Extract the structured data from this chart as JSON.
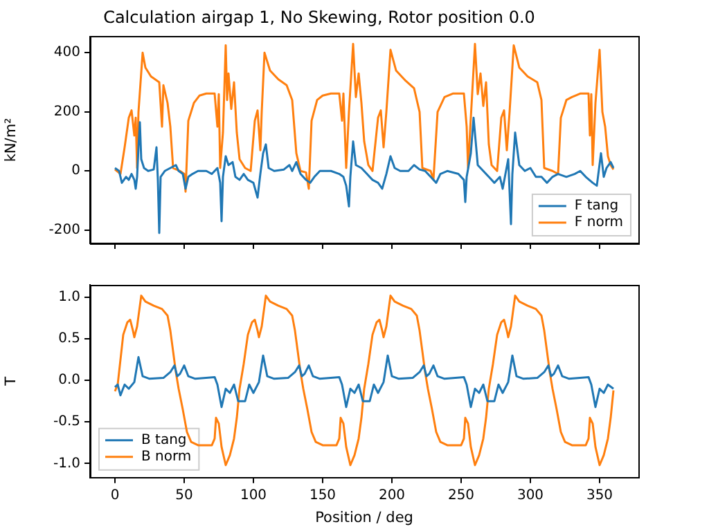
{
  "chart_data": [
    {
      "type": "line",
      "title": "Calculation airgap 1, No Skewing, Rotor position 0.0",
      "ylabel": "kN/m²",
      "xlim": [
        -18,
        378
      ],
      "xticks": [
        0,
        50,
        100,
        150,
        200,
        250,
        300,
        350
      ],
      "ylim": [
        -245,
        455
      ],
      "yticks": [
        -200,
        0,
        200,
        400
      ],
      "tick_labels": "y",
      "legend": "bottom right",
      "marker": "none",
      "line_style": "solid",
      "series": [
        {
          "name": "F tang",
          "color": "#1f77b4",
          "x": [
            0,
            3,
            5,
            8,
            10,
            12,
            14,
            15,
            16,
            17,
            18,
            19,
            21,
            24,
            28,
            30,
            31,
            32,
            33,
            36,
            40,
            44,
            46,
            49,
            51,
            53,
            56,
            60,
            66,
            70,
            74,
            76,
            77,
            78,
            80,
            82,
            85,
            87,
            90,
            93,
            96,
            100,
            103,
            105,
            107,
            109,
            111,
            115,
            122,
            126,
            128,
            131,
            134,
            138,
            141,
            144,
            148,
            156,
            162,
            165,
            167,
            169,
            170,
            172,
            174,
            178,
            182,
            186,
            190,
            193,
            196,
            199,
            202,
            206,
            212,
            216,
            220,
            224,
            228,
            232,
            235,
            240,
            248,
            252,
            253,
            254,
            257,
            259,
            262,
            266,
            270,
            274,
            278,
            280,
            282,
            284,
            286,
            287,
            289,
            292,
            296,
            300,
            304,
            308,
            312,
            316,
            320,
            326,
            332,
            336,
            340,
            345,
            348,
            351,
            353,
            355,
            358,
            360
          ],
          "values": [
            10,
            0,
            -40,
            -20,
            -30,
            -10,
            -30,
            -60,
            -20,
            80,
            165,
            40,
            10,
            0,
            5,
            80,
            -30,
            -210,
            -20,
            0,
            10,
            20,
            0,
            -10,
            -60,
            -20,
            -10,
            0,
            0,
            -10,
            10,
            -40,
            -170,
            -20,
            50,
            20,
            30,
            -20,
            -30,
            -10,
            -30,
            -40,
            -90,
            -10,
            60,
            90,
            10,
            0,
            5,
            20,
            0,
            30,
            -10,
            -30,
            -40,
            -20,
            0,
            0,
            -10,
            -20,
            -50,
            -120,
            -20,
            100,
            20,
            10,
            -10,
            -30,
            -40,
            -60,
            -10,
            50,
            10,
            0,
            0,
            20,
            5,
            0,
            -20,
            -40,
            -10,
            0,
            -10,
            -30,
            -105,
            -20,
            60,
            180,
            20,
            0,
            -20,
            -40,
            -20,
            -60,
            -10,
            40,
            -180,
            -10,
            130,
            20,
            0,
            10,
            -20,
            -20,
            -40,
            -20,
            -10,
            -20,
            -10,
            0,
            -20,
            -40,
            -50,
            60,
            -20,
            10,
            30,
            10
          ]
        },
        {
          "name": "F norm",
          "color": "#ff7f0e",
          "x": [
            0,
            4,
            7,
            10,
            12,
            14,
            15,
            16,
            17,
            20,
            22,
            26,
            32,
            34,
            35,
            38,
            40,
            42,
            47,
            50,
            51,
            53,
            57,
            61,
            66,
            72,
            74,
            75,
            76,
            78,
            80,
            81,
            82,
            84,
            86,
            88,
            90,
            94,
            98,
            101,
            103,
            105,
            106,
            108,
            112,
            118,
            124,
            128,
            131,
            134,
            138,
            140,
            142,
            146,
            150,
            156,
            162,
            164,
            165,
            167,
            169,
            172,
            174,
            176,
            178,
            180,
            183,
            186,
            190,
            192,
            194,
            196,
            199,
            203,
            210,
            216,
            220,
            222,
            228,
            230,
            233,
            238,
            244,
            252,
            254,
            255,
            257,
            260,
            262,
            264,
            266,
            268,
            270,
            272,
            276,
            279,
            281,
            283,
            285,
            288,
            292,
            298,
            305,
            308,
            310,
            316,
            320,
            322,
            326,
            330,
            336,
            342,
            343,
            344,
            345,
            347,
            350,
            352,
            354,
            356,
            358,
            360
          ],
          "values": [
            5,
            -10,
            80,
            180,
            205,
            120,
            180,
            10,
            200,
            400,
            350,
            320,
            300,
            150,
            290,
            230,
            150,
            10,
            0,
            -10,
            -70,
            170,
            230,
            255,
            262,
            262,
            150,
            260,
            10,
            130,
            425,
            240,
            330,
            210,
            300,
            130,
            40,
            10,
            0,
            170,
            205,
            70,
            200,
            400,
            340,
            310,
            290,
            240,
            60,
            0,
            -5,
            -60,
            170,
            240,
            255,
            262,
            262,
            170,
            262,
            10,
            200,
            430,
            250,
            330,
            230,
            100,
            20,
            0,
            180,
            205,
            80,
            200,
            410,
            340,
            305,
            280,
            200,
            10,
            0,
            -30,
            200,
            250,
            262,
            262,
            150,
            10,
            180,
            430,
            260,
            330,
            220,
            300,
            90,
            20,
            0,
            180,
            205,
            70,
            200,
            425,
            350,
            320,
            300,
            240,
            10,
            0,
            -10,
            180,
            240,
            250,
            262,
            262,
            120,
            260,
            20,
            230,
            410,
            200,
            150,
            50,
            20,
            5
          ]
        }
      ]
    },
    {
      "type": "line",
      "xlabel": "Position / deg",
      "ylabel": "T",
      "xlim": [
        -18,
        378
      ],
      "xticks": [
        0,
        50,
        100,
        150,
        200,
        250,
        300,
        350
      ],
      "ylim": [
        -1.17,
        1.15
      ],
      "yticks": [
        {
          "value": -1,
          "label": "-1.0"
        },
        -0.5,
        {
          "value": 0,
          "label": "0.0"
        },
        0.5,
        {
          "value": 1,
          "label": "1.0"
        }
      ],
      "legend": "bottom left",
      "marker": "none",
      "line_style": "solid",
      "series": [
        {
          "name": "B tang",
          "color": "#1f77b4",
          "x": [
            0,
            2,
            4,
            7,
            10,
            14,
            17,
            20,
            25,
            35,
            40,
            43,
            45,
            47,
            50,
            53,
            58,
            72,
            74,
            77,
            80,
            83,
            86,
            89,
            94,
            97,
            100,
            104,
            107,
            110,
            115,
            125,
            130,
            133,
            135,
            137,
            140,
            143,
            148,
            162,
            164,
            167,
            170,
            173,
            176,
            179,
            184,
            187,
            190,
            194,
            197,
            200,
            205,
            215,
            220,
            223,
            225,
            227,
            230,
            233,
            238,
            252,
            254,
            257,
            260,
            263,
            266,
            269,
            274,
            277,
            280,
            284,
            287,
            290,
            295,
            305,
            310,
            313,
            315,
            317,
            320,
            323,
            328,
            342,
            344,
            347,
            350,
            353,
            356,
            360
          ],
          "values": [
            -0.08,
            -0.05,
            -0.18,
            -0.05,
            -0.1,
            -0.02,
            0.28,
            0.05,
            0.02,
            0.03,
            0.1,
            0.18,
            0.05,
            0.08,
            0.18,
            0.05,
            0.02,
            0.04,
            -0.05,
            -0.32,
            -0.1,
            -0.15,
            -0.05,
            -0.25,
            -0.25,
            -0.05,
            -0.15,
            -0.02,
            0.3,
            0.05,
            0.02,
            0.03,
            0.1,
            0.18,
            0.05,
            0.08,
            0.18,
            0.05,
            0.02,
            0.04,
            -0.05,
            -0.32,
            -0.1,
            -0.15,
            -0.05,
            -0.25,
            -0.25,
            -0.05,
            -0.15,
            -0.02,
            0.3,
            0.05,
            0.02,
            0.03,
            0.1,
            0.18,
            0.05,
            0.08,
            0.18,
            0.05,
            0.02,
            0.04,
            -0.05,
            -0.32,
            -0.1,
            -0.15,
            -0.05,
            -0.25,
            -0.25,
            -0.05,
            -0.15,
            -0.02,
            0.3,
            0.05,
            0.02,
            0.03,
            0.1,
            0.18,
            0.05,
            0.08,
            0.18,
            0.05,
            0.02,
            0.04,
            -0.05,
            -0.32,
            -0.1,
            -0.15,
            -0.05,
            -0.1
          ]
        },
        {
          "name": "B norm",
          "color": "#ff7f0e",
          "x": [
            0,
            2,
            6,
            9,
            11,
            13,
            14,
            16,
            19,
            22,
            28,
            34,
            38,
            40,
            42,
            44,
            46,
            49,
            52,
            55,
            60,
            70,
            72,
            73,
            75,
            77,
            80,
            83,
            86,
            88,
            90,
            93,
            96,
            99,
            101,
            103,
            104,
            106,
            109,
            112,
            118,
            124,
            128,
            130,
            132,
            134,
            136,
            139,
            142,
            145,
            150,
            160,
            162,
            163,
            165,
            167,
            170,
            173,
            176,
            178,
            180,
            183,
            186,
            189,
            191,
            193,
            194,
            196,
            199,
            202,
            208,
            214,
            218,
            220,
            222,
            224,
            226,
            229,
            232,
            235,
            240,
            250,
            252,
            253,
            255,
            257,
            260,
            263,
            266,
            268,
            270,
            273,
            276,
            279,
            281,
            283,
            284,
            286,
            289,
            292,
            298,
            304,
            308,
            310,
            312,
            314,
            316,
            319,
            322,
            325,
            330,
            340,
            342,
            343,
            345,
            347,
            350,
            353,
            356,
            358,
            360
          ],
          "values": [
            -0.13,
            -0.05,
            0.55,
            0.7,
            0.73,
            0.6,
            0.52,
            0.65,
            1.02,
            0.95,
            0.9,
            0.86,
            0.78,
            0.6,
            0.35,
            0.1,
            -0.1,
            -0.35,
            -0.62,
            -0.74,
            -0.78,
            -0.78,
            -0.7,
            -0.45,
            -0.52,
            -0.8,
            -1.02,
            -0.9,
            -0.7,
            -0.45,
            -0.1,
            0.2,
            0.55,
            0.7,
            0.73,
            0.6,
            0.52,
            0.65,
            1.02,
            0.95,
            0.9,
            0.86,
            0.78,
            0.6,
            0.35,
            0.1,
            -0.1,
            -0.35,
            -0.62,
            -0.74,
            -0.78,
            -0.78,
            -0.7,
            -0.45,
            -0.52,
            -0.8,
            -1.02,
            -0.9,
            -0.7,
            -0.45,
            -0.1,
            0.2,
            0.55,
            0.7,
            0.73,
            0.6,
            0.52,
            0.65,
            1.02,
            0.95,
            0.9,
            0.86,
            0.78,
            0.6,
            0.35,
            0.1,
            -0.1,
            -0.35,
            -0.62,
            -0.74,
            -0.78,
            -0.78,
            -0.7,
            -0.45,
            -0.52,
            -0.8,
            -1.02,
            -0.9,
            -0.7,
            -0.45,
            -0.1,
            0.2,
            0.55,
            0.7,
            0.73,
            0.6,
            0.52,
            0.65,
            1.02,
            0.95,
            0.9,
            0.86,
            0.78,
            0.6,
            0.35,
            0.1,
            -0.1,
            -0.35,
            -0.62,
            -0.74,
            -0.78,
            -0.78,
            -0.7,
            -0.45,
            -0.52,
            -0.8,
            -1.02,
            -0.9,
            -0.7,
            -0.45,
            -0.12
          ]
        }
      ]
    }
  ]
}
